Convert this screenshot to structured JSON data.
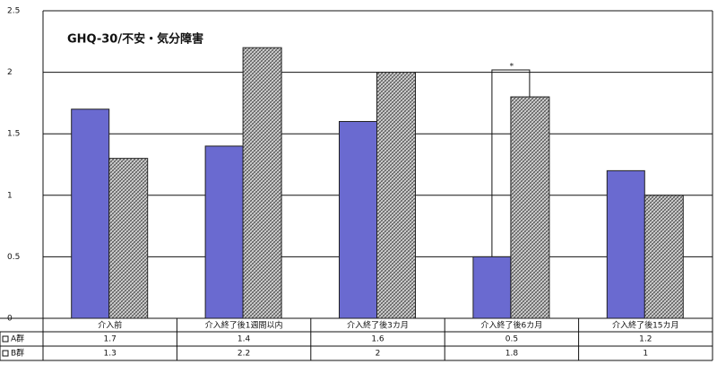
{
  "chart_data": {
    "type": "bar",
    "title": "GHQ-30/不安・気分障害",
    "categories": [
      "介入前",
      "介入終了後1週間以内",
      "介入終了後3カ月",
      "介入終了後6カ月",
      "介入終了後15カ月"
    ],
    "series": [
      {
        "name": "A群",
        "color": "#6a6ad0",
        "values": [
          1.7,
          1.4,
          1.6,
          0.5,
          1.2
        ]
      },
      {
        "name": "B群",
        "color": "#bdbdbd",
        "values": [
          1.3,
          2.2,
          2,
          1.8,
          1
        ]
      }
    ],
    "ylim": [
      0,
      2.5
    ],
    "yticks": [
      0,
      0.5,
      1,
      1.5,
      2,
      2.5
    ],
    "grid": true,
    "annotation": "*"
  }
}
